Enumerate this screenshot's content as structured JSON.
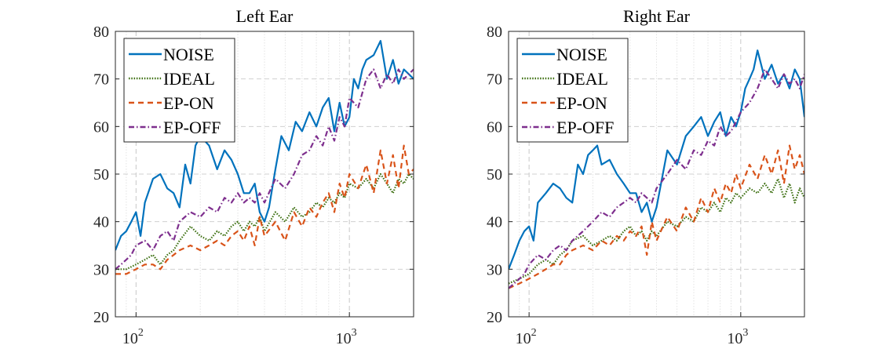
{
  "chart_data": [
    {
      "type": "line",
      "title": "Left Ear",
      "xscale": "log",
      "xlim": [
        80,
        2000
      ],
      "ylim": [
        20,
        80
      ],
      "yticks": [
        20,
        30,
        40,
        50,
        60,
        70,
        80
      ],
      "xtick_labels": [
        {
          "base": "10",
          "exp": "2",
          "value": 100
        },
        {
          "base": "10",
          "exp": "3",
          "value": 1000
        }
      ],
      "grid": true,
      "legend": {
        "position": "top-left",
        "entries": [
          "NOISE",
          "IDEAL",
          "EP-ON",
          "EP-OFF"
        ]
      },
      "series": [
        {
          "name": "NOISE",
          "color": "#0072BD",
          "style": "solid",
          "x": [
            80,
            85,
            90,
            95,
            100,
            105,
            110,
            120,
            130,
            140,
            150,
            160,
            170,
            180,
            190,
            200,
            220,
            240,
            260,
            280,
            300,
            320,
            340,
            360,
            380,
            400,
            420,
            450,
            480,
            520,
            560,
            600,
            650,
            700,
            750,
            800,
            850,
            900,
            950,
            1000,
            1050,
            1100,
            1150,
            1200,
            1300,
            1400,
            1500,
            1600,
            1700,
            1800,
            1900,
            2000
          ],
          "y": [
            34,
            37,
            38,
            40,
            42,
            37,
            44,
            49,
            50,
            47,
            46,
            43,
            52,
            48,
            56,
            58,
            56,
            51,
            55,
            53,
            50,
            46,
            46,
            48,
            42,
            40,
            43,
            51,
            58,
            55,
            61,
            59,
            63,
            60,
            64,
            66,
            59,
            65,
            60,
            62,
            70,
            68,
            72,
            74,
            75,
            78,
            70,
            74,
            69,
            72,
            71,
            70
          ]
        },
        {
          "name": "IDEAL",
          "color": "#3B6E0F",
          "style": "dotted",
          "x": [
            80,
            90,
            100,
            110,
            120,
            130,
            140,
            150,
            160,
            180,
            200,
            220,
            240,
            260,
            280,
            300,
            320,
            340,
            360,
            380,
            400,
            450,
            500,
            550,
            600,
            650,
            700,
            750,
            800,
            850,
            900,
            950,
            1000,
            1100,
            1200,
            1300,
            1400,
            1500,
            1600,
            1700,
            1800,
            1900,
            2000
          ],
          "y": [
            30,
            30,
            31,
            32,
            33,
            31,
            33,
            34,
            36,
            39,
            37,
            36,
            38,
            37,
            39,
            40,
            38,
            40,
            39,
            41,
            38,
            42,
            40,
            43,
            41,
            42,
            44,
            43,
            45,
            44,
            46,
            45,
            48,
            47,
            49,
            47,
            50,
            48,
            46,
            49,
            48,
            50,
            49
          ]
        },
        {
          "name": "EP-ON",
          "color": "#D95319",
          "style": "dashed",
          "x": [
            80,
            90,
            100,
            110,
            120,
            130,
            140,
            150,
            160,
            180,
            200,
            220,
            240,
            260,
            280,
            300,
            320,
            340,
            360,
            380,
            400,
            450,
            500,
            550,
            600,
            650,
            700,
            750,
            800,
            850,
            900,
            950,
            1000,
            1100,
            1200,
            1300,
            1400,
            1500,
            1600,
            1700,
            1800,
            1900,
            2000
          ],
          "y": [
            29,
            29,
            30,
            31,
            31,
            30,
            32,
            33,
            34,
            35,
            34,
            35,
            36,
            35,
            37,
            38,
            36,
            39,
            35,
            41,
            37,
            40,
            36,
            42,
            39,
            43,
            41,
            44,
            46,
            42,
            48,
            45,
            50,
            47,
            52,
            46,
            55,
            48,
            54,
            47,
            56,
            50,
            51
          ]
        },
        {
          "name": "EP-OFF",
          "color": "#7E2F8E",
          "style": "dashdot",
          "x": [
            80,
            85,
            90,
            95,
            100,
            110,
            120,
            130,
            140,
            150,
            160,
            180,
            200,
            220,
            240,
            260,
            280,
            300,
            320,
            340,
            360,
            380,
            400,
            450,
            500,
            550,
            600,
            650,
            700,
            750,
            800,
            850,
            900,
            950,
            1000,
            1100,
            1200,
            1300,
            1400,
            1500,
            1600,
            1700,
            1800,
            1900,
            2000
          ],
          "y": [
            30,
            31,
            32,
            33,
            35,
            36,
            34,
            37,
            38,
            36,
            40,
            42,
            41,
            43,
            42,
            45,
            44,
            46,
            44,
            45,
            44,
            46,
            44,
            49,
            47,
            50,
            54,
            55,
            58,
            56,
            60,
            57,
            62,
            60,
            66,
            64,
            70,
            72,
            68,
            71,
            69,
            72,
            70,
            71,
            72
          ]
        }
      ]
    },
    {
      "type": "line",
      "title": "Right Ear",
      "xscale": "log",
      "xlim": [
        80,
        2000
      ],
      "ylim": [
        20,
        80
      ],
      "yticks": [
        20,
        30,
        40,
        50,
        60,
        70,
        80
      ],
      "xtick_labels": [
        {
          "base": "10",
          "exp": "2",
          "value": 100
        },
        {
          "base": "10",
          "exp": "3",
          "value": 1000
        }
      ],
      "grid": true,
      "legend": {
        "position": "top-left",
        "entries": [
          "NOISE",
          "IDEAL",
          "EP-ON",
          "EP-OFF"
        ]
      },
      "series": [
        {
          "name": "NOISE",
          "color": "#0072BD",
          "style": "solid",
          "x": [
            80,
            85,
            90,
            95,
            100,
            105,
            110,
            120,
            130,
            140,
            150,
            160,
            170,
            180,
            190,
            200,
            210,
            220,
            240,
            260,
            280,
            300,
            320,
            340,
            360,
            380,
            400,
            450,
            500,
            550,
            600,
            650,
            700,
            750,
            800,
            850,
            900,
            950,
            1000,
            1050,
            1100,
            1150,
            1200,
            1300,
            1400,
            1500,
            1600,
            1700,
            1800,
            1900,
            2000
          ],
          "y": [
            30,
            33,
            36,
            38,
            39,
            36,
            44,
            46,
            48,
            47,
            45,
            44,
            52,
            50,
            54,
            55,
            56,
            52,
            53,
            50,
            48,
            46,
            46,
            42,
            44,
            40,
            43,
            55,
            52,
            58,
            60,
            62,
            58,
            61,
            63,
            58,
            62,
            60,
            63,
            68,
            70,
            72,
            76,
            70,
            73,
            69,
            71,
            68,
            72,
            70,
            62
          ]
        },
        {
          "name": "IDEAL",
          "color": "#3B6E0F",
          "style": "dotted",
          "x": [
            80,
            90,
            100,
            110,
            120,
            130,
            140,
            150,
            160,
            180,
            200,
            220,
            240,
            260,
            280,
            300,
            320,
            340,
            360,
            380,
            400,
            450,
            500,
            550,
            600,
            650,
            700,
            750,
            800,
            850,
            900,
            950,
            1000,
            1100,
            1200,
            1300,
            1400,
            1500,
            1600,
            1700,
            1800,
            1900,
            2000
          ],
          "y": [
            27,
            28,
            29,
            31,
            32,
            31,
            33,
            34,
            36,
            37,
            35,
            36,
            37,
            36,
            38,
            39,
            37,
            38,
            36,
            38,
            37,
            40,
            39,
            41,
            40,
            43,
            42,
            44,
            42,
            45,
            44,
            46,
            45,
            47,
            46,
            48,
            46,
            49,
            45,
            48,
            44,
            47,
            45
          ]
        },
        {
          "name": "EP-ON",
          "color": "#D95319",
          "style": "dashed",
          "x": [
            80,
            90,
            100,
            110,
            120,
            130,
            140,
            150,
            160,
            180,
            200,
            220,
            240,
            260,
            280,
            300,
            320,
            340,
            360,
            380,
            400,
            450,
            500,
            550,
            600,
            650,
            700,
            750,
            800,
            850,
            900,
            950,
            1000,
            1100,
            1200,
            1300,
            1400,
            1500,
            1600,
            1700,
            1800,
            1900,
            2000
          ],
          "y": [
            26,
            27,
            28,
            29,
            30,
            31,
            31,
            33,
            34,
            35,
            34,
            36,
            35,
            37,
            36,
            38,
            37,
            39,
            33,
            40,
            36,
            41,
            38,
            43,
            40,
            45,
            42,
            47,
            44,
            48,
            46,
            50,
            47,
            52,
            49,
            54,
            50,
            55,
            48,
            56,
            51,
            54,
            50
          ]
        },
        {
          "name": "EP-OFF",
          "color": "#7E2F8E",
          "style": "dashdot",
          "x": [
            80,
            85,
            90,
            95,
            100,
            110,
            120,
            130,
            140,
            150,
            160,
            180,
            200,
            220,
            240,
            260,
            280,
            300,
            320,
            340,
            360,
            380,
            400,
            450,
            500,
            550,
            600,
            650,
            700,
            750,
            800,
            850,
            900,
            950,
            1000,
            1100,
            1200,
            1300,
            1400,
            1500,
            1600,
            1700,
            1800,
            1900,
            2000
          ],
          "y": [
            26,
            27,
            28,
            29,
            31,
            33,
            32,
            34,
            35,
            34,
            36,
            38,
            40,
            42,
            41,
            43,
            44,
            45,
            44,
            46,
            45,
            44,
            47,
            50,
            53,
            51,
            55,
            54,
            57,
            56,
            60,
            58,
            59,
            61,
            63,
            65,
            68,
            72,
            70,
            68,
            71,
            69,
            70,
            68,
            71
          ]
        }
      ]
    }
  ]
}
